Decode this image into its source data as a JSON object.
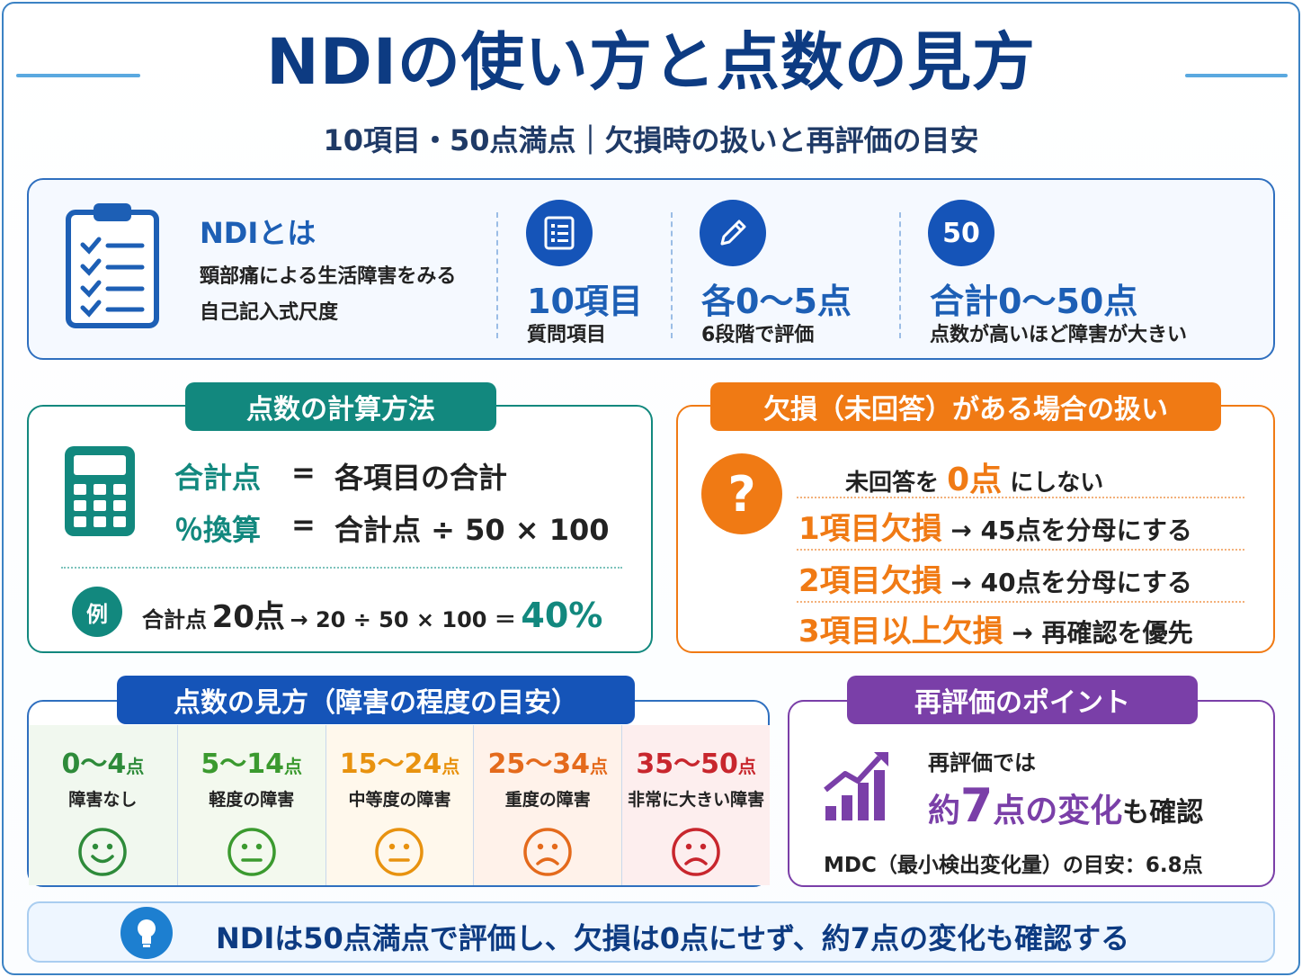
{
  "header": {
    "title": "NDIの使い方と点数の見方",
    "subtitle": "10項目・50点満点｜欠損時の扱いと再評価の目安"
  },
  "overview": {
    "heading": "NDIとは",
    "desc_line1": "頸部痛による生活障害をみる",
    "desc_line2": "自己記入式尺度",
    "items": [
      {
        "icon": "list-icon",
        "big": "10項目",
        "small": "質問項目"
      },
      {
        "icon": "pencil-icon",
        "big": "各0〜5点",
        "small": "6段階で評価"
      },
      {
        "icon_text": "50",
        "big": "合計0〜50点",
        "small": "点数が高いほど障害が大きい"
      }
    ]
  },
  "calc": {
    "title": "点数の計算方法",
    "row1_label": "合計点",
    "row1_eq": "=",
    "row1_value": "各項目の合計",
    "row2_label": "％換算",
    "row2_eq": "=",
    "row2_value": "合計点 ÷ 50 × 100",
    "example_badge": "例",
    "example_prefix": "合計点",
    "example_points": "20点",
    "example_formula": "→ 20 ÷ 50 × 100 ＝",
    "example_result": "40%",
    "color": "#12887e"
  },
  "missing": {
    "title": "欠損（未回答）がある場合の扱い",
    "intro_prefix": "未回答を",
    "intro_zero": "0点",
    "intro_suffix": "にしない",
    "rows": [
      {
        "label": "1項目欠損",
        "text": "→ 45点を分母にする"
      },
      {
        "label": "2項目欠損",
        "text": "→ 40点を分母にする"
      },
      {
        "label": "3項目以上欠損",
        "text": "→ 再確認を優先"
      }
    ],
    "color": "#f07a14"
  },
  "severity": {
    "title": "点数の見方（障害の程度の目安）",
    "levels": [
      {
        "range": "0〜4",
        "unit": "点",
        "label": "障害なし",
        "color": "#2e8b3a",
        "bg": "#f1f8ef",
        "face": "happy"
      },
      {
        "range": "5〜14",
        "unit": "点",
        "label": "軽度の障害",
        "color": "#3b9a2f",
        "bg": "#f3f9ee",
        "face": "neutral"
      },
      {
        "range": "15〜24",
        "unit": "点",
        "label": "中等度の障害",
        "color": "#e8920f",
        "bg": "#fff8ec",
        "face": "neutral"
      },
      {
        "range": "25〜34",
        "unit": "点",
        "label": "重度の障害",
        "color": "#e46a1c",
        "bg": "#fff2ea",
        "face": "sad"
      },
      {
        "range": "35〜50",
        "unit": "点",
        "label": "非常に大きい障害",
        "color": "#c8262d",
        "bg": "#fdeeee",
        "face": "sad"
      }
    ]
  },
  "reeval": {
    "title": "再評価のポイント",
    "line1": "再評価では",
    "big_prefix": "約",
    "big_num": "7",
    "big_unit": "点の変化",
    "big_suffix": "も確認",
    "mdc": "MDC（最小検出変化量）の目安：6.8点",
    "color": "#7a3fa8"
  },
  "footer": {
    "text": "NDIは50点満点で評価し、欠損は0点にせず、約7点の変化も確認する"
  }
}
